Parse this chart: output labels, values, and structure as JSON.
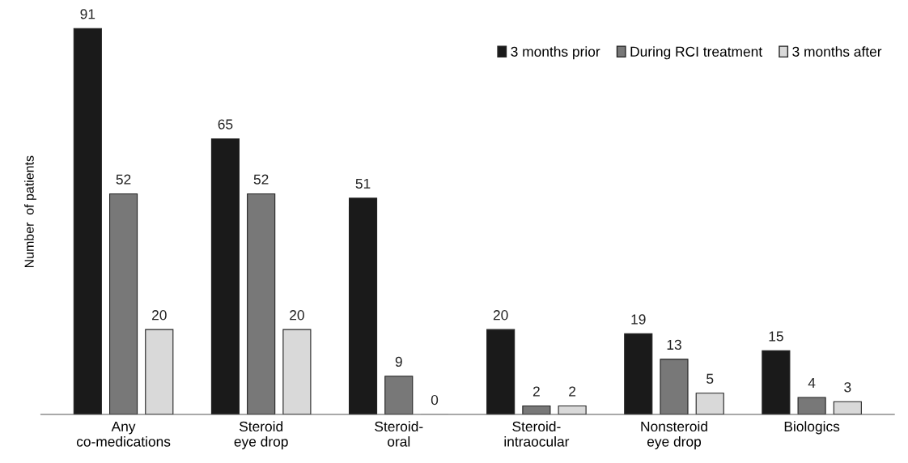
{
  "chart_data": {
    "type": "bar",
    "ylabel": "Number  of patients",
    "categories": [
      "Any\nco-medications",
      "Steroid\neye drop",
      "Steroid-\noral",
      "Steroid-\nintraocular",
      "Nonsteroid\neye drop",
      "Biologics"
    ],
    "series": [
      {
        "name": "3 months prior",
        "color": "#1a1a1a",
        "values": [
          91,
          65,
          51,
          20,
          19,
          15
        ]
      },
      {
        "name": "During RCI treatment",
        "color": "#787878",
        "values": [
          52,
          52,
          9,
          2,
          13,
          4
        ]
      },
      {
        "name": "3 months after",
        "color": "#d9d9d9",
        "values": [
          20,
          20,
          0,
          2,
          5,
          3
        ]
      }
    ],
    "data_labels": true,
    "legend": "top right",
    "grid": false
  }
}
